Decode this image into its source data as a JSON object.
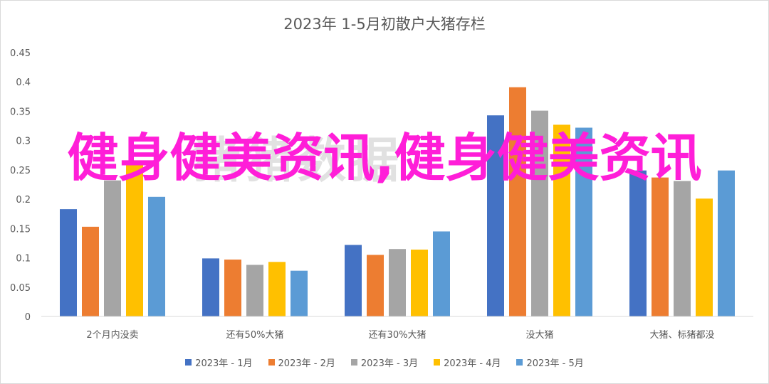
{
  "overlay": {
    "text": "健身健美资讯,健身健美资讯"
  },
  "chart_data": {
    "type": "bar",
    "title": "2023年 1-5月初散户大猪存栏",
    "xlabel": "",
    "ylabel": "",
    "ylim": [
      0,
      0.45
    ],
    "y_ticks": [
      "0",
      "0.05",
      "0.1",
      "0.15",
      "0.2",
      "0.25",
      "0.3",
      "0.35",
      "0.4",
      "0.45"
    ],
    "grid": false,
    "legend_position": "bottom",
    "categories": [
      "2个月内没卖",
      "还有50%大猪",
      "还有30%大猪",
      "没大猪",
      "大猪、标猪都没"
    ],
    "series": [
      {
        "name": "2023年 - 1月",
        "color": "#4472c4",
        "values": [
          0.183,
          0.099,
          0.122,
          0.343,
          0.249
        ]
      },
      {
        "name": "2023年 - 2月",
        "color": "#ed7d31",
        "values": [
          0.153,
          0.097,
          0.105,
          0.391,
          0.237
        ]
      },
      {
        "name": "2023年 - 3月",
        "color": "#a5a5a5",
        "values": [
          0.232,
          0.088,
          0.115,
          0.351,
          0.231
        ]
      },
      {
        "name": "2023年 - 4月",
        "color": "#ffc000",
        "values": [
          0.258,
          0.093,
          0.114,
          0.327,
          0.201
        ]
      },
      {
        "name": "2023年 - 5月",
        "color": "#5b9bd5",
        "values": [
          0.204,
          0.078,
          0.145,
          0.322,
          0.249
        ]
      }
    ]
  }
}
